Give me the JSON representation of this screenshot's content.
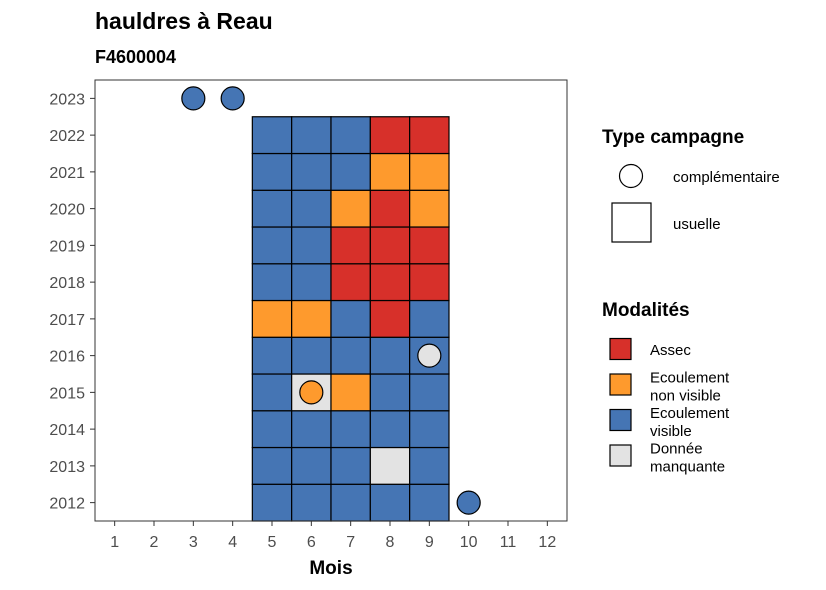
{
  "chart_data": {
    "type": "heatmap",
    "title": "hauldres à Reau",
    "subtitle": "F4600004",
    "xlabel": "Mois",
    "ylabel": "",
    "x_ticks": [
      1,
      2,
      3,
      4,
      5,
      6,
      7,
      8,
      9,
      10,
      11,
      12
    ],
    "y_ticks": [
      2012,
      2013,
      2014,
      2015,
      2016,
      2017,
      2018,
      2019,
      2020,
      2021,
      2022,
      2023
    ],
    "xlim": [
      0.5,
      12.5
    ],
    "ylim": [
      2011.5,
      2023.5
    ],
    "grid": false,
    "colors": {
      "Assec": "#d7302a",
      "Ecoulement non visible": "#fe9a2d",
      "Ecoulement visible": "#4575b4",
      "Donnée manquante": "#e3e3e3"
    },
    "usuelle": [
      {
        "year": 2012,
        "values": {
          "5": "Ecoulement visible",
          "6": "Ecoulement visible",
          "7": "Ecoulement visible",
          "8": "Ecoulement visible",
          "9": "Ecoulement visible"
        }
      },
      {
        "year": 2013,
        "values": {
          "5": "Ecoulement visible",
          "6": "Ecoulement visible",
          "7": "Ecoulement visible",
          "8": "Donnée manquante",
          "9": "Ecoulement visible"
        }
      },
      {
        "year": 2014,
        "values": {
          "5": "Ecoulement visible",
          "6": "Ecoulement visible",
          "7": "Ecoulement visible",
          "8": "Ecoulement visible",
          "9": "Ecoulement visible"
        }
      },
      {
        "year": 2015,
        "values": {
          "5": "Ecoulement visible",
          "6": "Donnée manquante",
          "7": "Ecoulement non visible",
          "8": "Ecoulement visible",
          "9": "Ecoulement visible"
        }
      },
      {
        "year": 2016,
        "values": {
          "5": "Ecoulement visible",
          "6": "Ecoulement visible",
          "7": "Ecoulement visible",
          "8": "Ecoulement visible",
          "9": "Ecoulement visible"
        }
      },
      {
        "year": 2017,
        "values": {
          "5": "Ecoulement non visible",
          "6": "Ecoulement non visible",
          "7": "Ecoulement visible",
          "8": "Assec",
          "9": "Ecoulement visible"
        }
      },
      {
        "year": 2018,
        "values": {
          "5": "Ecoulement visible",
          "6": "Ecoulement visible",
          "7": "Assec",
          "8": "Assec",
          "9": "Assec"
        }
      },
      {
        "year": 2019,
        "values": {
          "5": "Ecoulement visible",
          "6": "Ecoulement visible",
          "7": "Assec",
          "8": "Assec",
          "9": "Assec"
        }
      },
      {
        "year": 2020,
        "values": {
          "5": "Ecoulement visible",
          "6": "Ecoulement visible",
          "7": "Ecoulement non visible",
          "8": "Assec",
          "9": "Ecoulement non visible"
        }
      },
      {
        "year": 2021,
        "values": {
          "5": "Ecoulement visible",
          "6": "Ecoulement visible",
          "7": "Ecoulement visible",
          "8": "Ecoulement non visible",
          "9": "Ecoulement non visible"
        }
      },
      {
        "year": 2022,
        "values": {
          "5": "Ecoulement visible",
          "6": "Ecoulement visible",
          "7": "Ecoulement visible",
          "8": "Assec",
          "9": "Assec"
        }
      }
    ],
    "complementaire": [
      {
        "year": 2023,
        "month": 3,
        "value": "Ecoulement visible"
      },
      {
        "year": 2023,
        "month": 4,
        "value": "Ecoulement visible"
      },
      {
        "year": 2016,
        "month": 9,
        "value": "Donnée manquante"
      },
      {
        "year": 2015,
        "month": 6,
        "value": "Ecoulement non visible"
      },
      {
        "year": 2012,
        "month": 10,
        "value": "Ecoulement visible"
      }
    ],
    "legend": {
      "placement": "right",
      "type_title": "Type campagne",
      "type_items": [
        "complémentaire",
        "usuelle"
      ],
      "mod_title": "Modalités",
      "mod_items": [
        {
          "key": "Assec",
          "lines": [
            "Assec"
          ]
        },
        {
          "key": "Ecoulement non visible",
          "lines": [
            "Ecoulement",
            "non visible"
          ]
        },
        {
          "key": "Ecoulement visible",
          "lines": [
            "Ecoulement",
            "visible"
          ]
        },
        {
          "key": "Donnée manquante",
          "lines": [
            "Donnée",
            "manquante"
          ]
        }
      ]
    }
  }
}
